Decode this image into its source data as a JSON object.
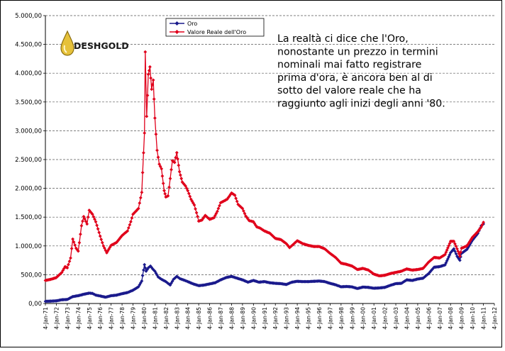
{
  "chart_data": {
    "type": "line",
    "title": "",
    "xlabel": "",
    "ylabel": "",
    "ylim": [
      0,
      5000
    ],
    "y_ticks": [
      "0,00",
      "500,00",
      "1.000,00",
      "1.500,00",
      "2.000,00",
      "2.500,00",
      "3.000,00",
      "3.500,00",
      "4.000,00",
      "4.500,00",
      "5.000,00"
    ],
    "x_ticks": [
      "4-Jan-71",
      "4-Jan-72",
      "4-Jan-73",
      "4-Jan-74",
      "4-Jan-75",
      "4-Jan-76",
      "4-Jan-77",
      "4-Jan-78",
      "4-Jan-79",
      "4-Jan-80",
      "4-Jan-81",
      "4-Jan-82",
      "4-Jan-83",
      "4-Jan-84",
      "4-Jan-85",
      "4-Jan-86",
      "4-Jan-87",
      "4-Jan-88",
      "4-Jan-89",
      "4-Jan-90",
      "4-Jan-91",
      "4-Jan-92",
      "4-Jan-93",
      "4-Jan-94",
      "4-Jan-95",
      "4-Jan-96",
      "4-Jan-97",
      "4-Jan-98",
      "4-Jan-99",
      "4-Jan-00",
      "4-Jan-01",
      "4-Jan-02",
      "4-Jan-03",
      "4-Jan-04",
      "4-Jan-05",
      "4-Jan-06",
      "4-Jan-07",
      "4-Jan-08",
      "4-Jan-09",
      "4-Jan-10",
      "4-Jan-11",
      "4-Jan-12"
    ],
    "grid": "horizontal dashed",
    "legend_position": "top",
    "series": [
      {
        "name": "Oro",
        "color": "#1a1a8c",
        "marker": "diamond",
        "points": [
          [
            1971.0,
            37
          ],
          [
            1971.5,
            41
          ],
          [
            1972.0,
            46
          ],
          [
            1972.5,
            65
          ],
          [
            1973.0,
            70
          ],
          [
            1973.5,
            120
          ],
          [
            1974.0,
            135
          ],
          [
            1974.5,
            160
          ],
          [
            1975.0,
            180
          ],
          [
            1975.3,
            175
          ],
          [
            1975.6,
            145
          ],
          [
            1976.0,
            130
          ],
          [
            1976.5,
            110
          ],
          [
            1977.0,
            135
          ],
          [
            1977.5,
            145
          ],
          [
            1978.0,
            170
          ],
          [
            1978.5,
            190
          ],
          [
            1979.0,
            230
          ],
          [
            1979.5,
            290
          ],
          [
            1979.8,
            390
          ],
          [
            1980.05,
            675
          ],
          [
            1980.2,
            560
          ],
          [
            1980.4,
            620
          ],
          [
            1980.6,
            650
          ],
          [
            1980.8,
            600
          ],
          [
            1981.0,
            560
          ],
          [
            1981.3,
            460
          ],
          [
            1981.6,
            420
          ],
          [
            1982.0,
            380
          ],
          [
            1982.4,
            320
          ],
          [
            1982.7,
            420
          ],
          [
            1983.0,
            470
          ],
          [
            1983.3,
            430
          ],
          [
            1983.6,
            410
          ],
          [
            1984.0,
            380
          ],
          [
            1984.5,
            340
          ],
          [
            1985.0,
            310
          ],
          [
            1985.5,
            320
          ],
          [
            1986.0,
            340
          ],
          [
            1986.5,
            360
          ],
          [
            1987.0,
            410
          ],
          [
            1987.5,
            450
          ],
          [
            1988.0,
            470
          ],
          [
            1988.5,
            440
          ],
          [
            1989.0,
            410
          ],
          [
            1989.5,
            370
          ],
          [
            1990.0,
            400
          ],
          [
            1990.5,
            370
          ],
          [
            1991.0,
            380
          ],
          [
            1991.5,
            360
          ],
          [
            1992.0,
            350
          ],
          [
            1992.5,
            345
          ],
          [
            1993.0,
            330
          ],
          [
            1993.5,
            370
          ],
          [
            1994.0,
            385
          ],
          [
            1994.5,
            380
          ],
          [
            1995.0,
            380
          ],
          [
            1995.5,
            385
          ],
          [
            1996.0,
            390
          ],
          [
            1996.5,
            380
          ],
          [
            1997.0,
            350
          ],
          [
            1997.5,
            325
          ],
          [
            1998.0,
            290
          ],
          [
            1998.5,
            295
          ],
          [
            1999.0,
            288
          ],
          [
            1999.5,
            260
          ],
          [
            2000.0,
            285
          ],
          [
            2000.5,
            280
          ],
          [
            2001.0,
            265
          ],
          [
            2001.5,
            270
          ],
          [
            2002.0,
            280
          ],
          [
            2002.5,
            315
          ],
          [
            2003.0,
            345
          ],
          [
            2003.5,
            350
          ],
          [
            2004.0,
            410
          ],
          [
            2004.5,
            400
          ],
          [
            2005.0,
            425
          ],
          [
            2005.5,
            440
          ],
          [
            2006.0,
            520
          ],
          [
            2006.5,
            630
          ],
          [
            2007.0,
            640
          ],
          [
            2007.5,
            670
          ],
          [
            2008.0,
            880
          ],
          [
            2008.3,
            950
          ],
          [
            2008.6,
            820
          ],
          [
            2008.85,
            750
          ],
          [
            2009.0,
            870
          ],
          [
            2009.5,
            940
          ],
          [
            2010.0,
            1100
          ],
          [
            2010.5,
            1220
          ],
          [
            2010.8,
            1350
          ],
          [
            2011.0,
            1380
          ]
        ]
      },
      {
        "name": "Valore Reale dell'Oro",
        "color": "#e0001b",
        "marker": "diamond",
        "points": [
          [
            1971.0,
            400
          ],
          [
            1971.5,
            420
          ],
          [
            1972.0,
            450
          ],
          [
            1972.5,
            540
          ],
          [
            1972.8,
            640
          ],
          [
            1973.0,
            620
          ],
          [
            1973.3,
            790
          ],
          [
            1973.5,
            1120
          ],
          [
            1973.8,
            960
          ],
          [
            1974.0,
            910
          ],
          [
            1974.3,
            1350
          ],
          [
            1974.5,
            1510
          ],
          [
            1974.8,
            1380
          ],
          [
            1975.0,
            1620
          ],
          [
            1975.3,
            1550
          ],
          [
            1975.6,
            1420
          ],
          [
            1976.0,
            1170
          ],
          [
            1976.3,
            1000
          ],
          [
            1976.6,
            880
          ],
          [
            1977.0,
            1010
          ],
          [
            1977.5,
            1060
          ],
          [
            1978.0,
            1180
          ],
          [
            1978.5,
            1260
          ],
          [
            1978.8,
            1420
          ],
          [
            1979.0,
            1550
          ],
          [
            1979.5,
            1650
          ],
          [
            1979.8,
            1930
          ],
          [
            1980.05,
            2960
          ],
          [
            1980.12,
            4370
          ],
          [
            1980.25,
            3250
          ],
          [
            1980.4,
            3980
          ],
          [
            1980.55,
            4110
          ],
          [
            1980.7,
            3720
          ],
          [
            1980.85,
            3880
          ],
          [
            1981.0,
            3220
          ],
          [
            1981.2,
            2660
          ],
          [
            1981.4,
            2420
          ],
          [
            1981.6,
            2340
          ],
          [
            1981.85,
            1960
          ],
          [
            1982.0,
            1850
          ],
          [
            1982.2,
            1870
          ],
          [
            1982.4,
            2170
          ],
          [
            1982.6,
            2480
          ],
          [
            1982.8,
            2450
          ],
          [
            1983.0,
            2620
          ],
          [
            1983.25,
            2290
          ],
          [
            1983.5,
            2110
          ],
          [
            1983.8,
            2040
          ],
          [
            1984.0,
            1960
          ],
          [
            1984.3,
            1810
          ],
          [
            1984.6,
            1710
          ],
          [
            1984.9,
            1510
          ],
          [
            1985.0,
            1430
          ],
          [
            1985.3,
            1450
          ],
          [
            1985.6,
            1530
          ],
          [
            1986.0,
            1460
          ],
          [
            1986.4,
            1490
          ],
          [
            1986.7,
            1600
          ],
          [
            1987.0,
            1750
          ],
          [
            1987.3,
            1780
          ],
          [
            1987.6,
            1810
          ],
          [
            1988.0,
            1920
          ],
          [
            1988.3,
            1880
          ],
          [
            1988.6,
            1720
          ],
          [
            1989.0,
            1650
          ],
          [
            1989.3,
            1520
          ],
          [
            1989.6,
            1440
          ],
          [
            1990.0,
            1420
          ],
          [
            1990.3,
            1330
          ],
          [
            1990.6,
            1310
          ],
          [
            1991.0,
            1260
          ],
          [
            1991.5,
            1220
          ],
          [
            1992.0,
            1130
          ],
          [
            1992.5,
            1110
          ],
          [
            1993.0,
            1040
          ],
          [
            1993.3,
            970
          ],
          [
            1993.6,
            1020
          ],
          [
            1994.0,
            1090
          ],
          [
            1994.5,
            1040
          ],
          [
            1995.0,
            1010
          ],
          [
            1995.5,
            990
          ],
          [
            1996.0,
            990
          ],
          [
            1996.5,
            950
          ],
          [
            1997.0,
            870
          ],
          [
            1997.5,
            800
          ],
          [
            1998.0,
            700
          ],
          [
            1998.5,
            680
          ],
          [
            1999.0,
            650
          ],
          [
            1999.5,
            590
          ],
          [
            2000.0,
            610
          ],
          [
            2000.5,
            580
          ],
          [
            2001.0,
            510
          ],
          [
            2001.5,
            480
          ],
          [
            2002.0,
            490
          ],
          [
            2002.5,
            520
          ],
          [
            2003.0,
            540
          ],
          [
            2003.5,
            560
          ],
          [
            2004.0,
            600
          ],
          [
            2004.5,
            580
          ],
          [
            2005.0,
            590
          ],
          [
            2005.5,
            610
          ],
          [
            2006.0,
            720
          ],
          [
            2006.5,
            800
          ],
          [
            2007.0,
            790
          ],
          [
            2007.5,
            850
          ],
          [
            2008.0,
            1080
          ],
          [
            2008.3,
            1080
          ],
          [
            2008.6,
            950
          ],
          [
            2008.85,
            820
          ],
          [
            2009.0,
            960
          ],
          [
            2009.5,
            1000
          ],
          [
            2010.0,
            1150
          ],
          [
            2010.5,
            1250
          ],
          [
            2010.8,
            1330
          ],
          [
            2011.0,
            1410
          ]
        ]
      }
    ],
    "annotation": "La realtà ci dice che l'Oro,\nnonostante un prezzo in termini\nnominali mai fatto registrare\nprima d'ora, è ancora ben al di\nsotto del valore reale che ha\nraggiunto agli inizi degli anni '80."
  },
  "logo": {
    "text": "DESHGOLD"
  },
  "colors": {
    "border": "#000000",
    "grid": "#555555",
    "logo_drop": "#e6c13a"
  }
}
